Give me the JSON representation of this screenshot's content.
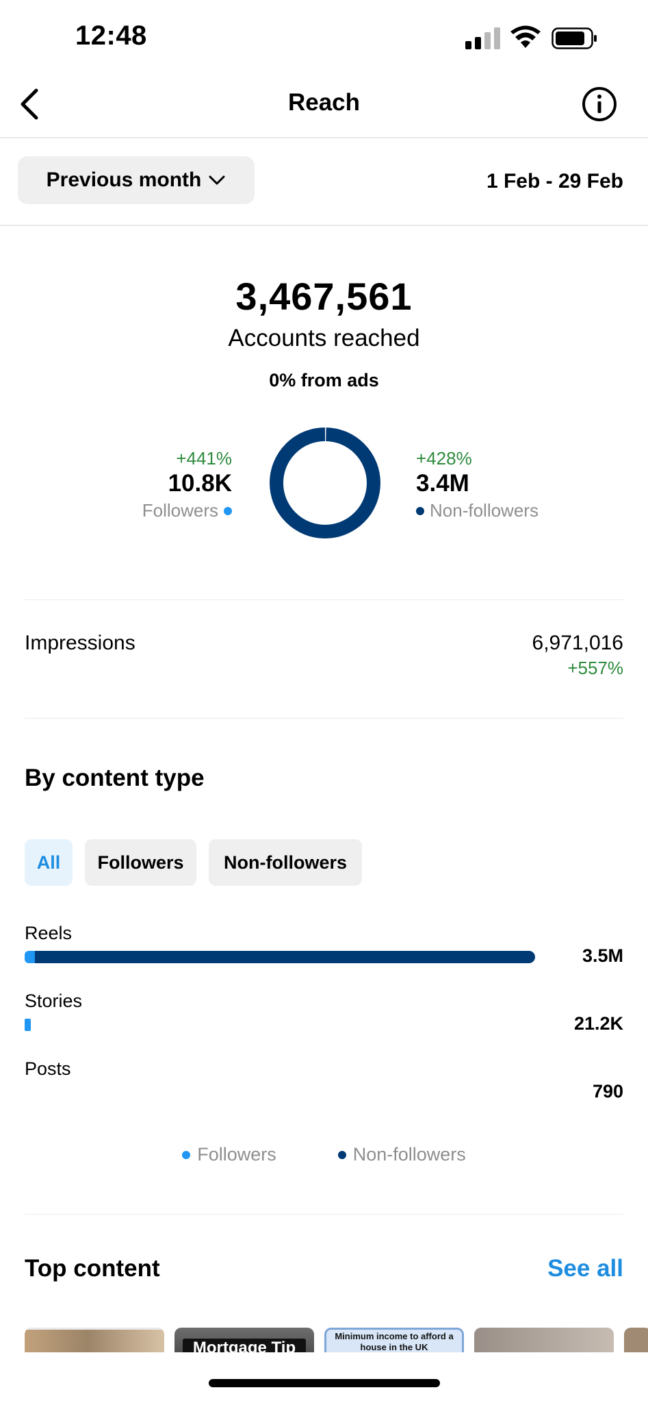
{
  "status_bar": {
    "time": "12:48"
  },
  "nav": {
    "title": "Reach"
  },
  "filter": {
    "period": "Previous month",
    "date_range": "1 Feb - 29 Feb"
  },
  "summary": {
    "total": "3,467,561",
    "total_label": "Accounts reached",
    "ads_note": "0% from ads",
    "followers": {
      "change": "+441%",
      "value": "10.8K",
      "label": "Followers"
    },
    "non_followers": {
      "change": "+428%",
      "value": "3.4M",
      "label": "Non-followers"
    },
    "followers_share": 0.003
  },
  "impressions": {
    "label": "Impressions",
    "value": "6,971,016",
    "change": "+557%"
  },
  "content_type": {
    "title": "By content type",
    "chips": [
      "All",
      "Followers",
      "Non-followers"
    ],
    "active_chip": "All",
    "rows": [
      {
        "label": "Reels",
        "value": "3.5M",
        "fraction": 1.0,
        "followers_fraction": 0.02
      },
      {
        "label": "Stories",
        "value": "21.2K",
        "fraction": 0.012,
        "followers_fraction": 1.0
      },
      {
        "label": "Posts",
        "value": "790",
        "fraction": 0.0,
        "followers_fraction": 0.0
      }
    ],
    "legend": [
      "Followers",
      "Non-followers"
    ]
  },
  "top_content": {
    "title": "Top content",
    "see_all": "See all",
    "thumbnails": [
      {
        "text": ""
      },
      {
        "text": "Mortgage Tip"
      },
      {
        "text": "Minimum income to afford a house in the UK"
      },
      {
        "text": ""
      }
    ]
  },
  "colors": {
    "followers": "#2196f3",
    "non_followers": "#003a74",
    "positive": "#2e8b3e",
    "link": "#1e8de0"
  }
}
